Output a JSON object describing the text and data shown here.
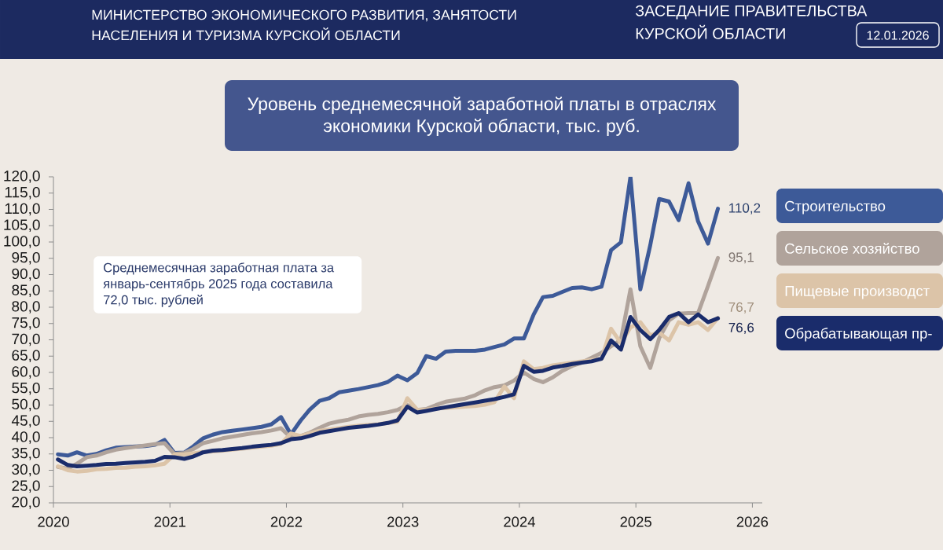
{
  "chart_data": {
    "type": "line",
    "title": "Уровень среднемесячной заработной платы в отраслях экономики Курской области, тыс. руб.",
    "annotations": [
      "МИНИСТЕРСТВО ЭКОНОМИЧЕСКОГО РАЗВИТИЯ, ЗАНЯТОСТИ НАСЕЛЕНИЯ И ТУРИЗМА КУРСКОЙ ОБЛАСТИ",
      "ЗАСЕДАНИЕ ПРАВИТЕЛЬСТВА КУРСКОЙ ОБЛАСТИ",
      "12.01.2026",
      "Среднемесячная заработная плата за январь-сентябрь 2025 года составила 72,0 тыс. рублей"
    ],
    "x": [
      "2020-01-15",
      "2020-02-15",
      "2020-03-15",
      "2020-04-15",
      "2020-05-15",
      "2020-06-15",
      "2020-07-15",
      "2020-08-15",
      "2020-09-15",
      "2020-10-15",
      "2020-11-15",
      "2020-12-15",
      "2021-01-15",
      "2021-02-15",
      "2021-03-15",
      "2021-04-15",
      "2021-05-15",
      "2021-06-15",
      "2021-07-15",
      "2021-08-15",
      "2021-09-15",
      "2021-10-15",
      "2021-11-15",
      "2021-12-15",
      "2022-01-15",
      "2022-02-15",
      "2022-03-15",
      "2022-04-15",
      "2022-05-15",
      "2022-06-15",
      "2022-07-15",
      "2022-08-15",
      "2022-09-15",
      "2022-10-15",
      "2022-11-15",
      "2022-12-15",
      "2023-01-15",
      "2023-02-15",
      "2023-03-15",
      "2023-04-15",
      "2023-05-15",
      "2023-06-15",
      "2023-07-15",
      "2023-08-15",
      "2023-09-15",
      "2023-10-15",
      "2023-11-15",
      "2023-12-15",
      "2024-01-15",
      "2024-02-15",
      "2024-03-15",
      "2024-04-15",
      "2024-05-15",
      "2024-06-15",
      "2024-07-15",
      "2024-08-15",
      "2024-09-15",
      "2024-10-15",
      "2024-11-15",
      "2024-12-15",
      "2025-01-15",
      "2025-02-15",
      "2025-03-15",
      "2025-04-15",
      "2025-05-15",
      "2025-06-15",
      "2025-07-15",
      "2025-08-15",
      "2025-09-15"
    ],
    "xlim": [
      "2020",
      "2026-02"
    ],
    "xticks": [
      "2020",
      "2021",
      "2022",
      "2023",
      "2024",
      "2025",
      "2026"
    ],
    "ylim": [
      20,
      120
    ],
    "yticks": [
      {
        "value": 20,
        "label": "20,0"
      },
      {
        "value": 25,
        "label": "25,0"
      },
      {
        "value": 30,
        "label": "30,0"
      },
      {
        "value": 35,
        "label": "35,0"
      },
      {
        "value": 40,
        "label": "40,0"
      },
      {
        "value": 45,
        "label": "45,0"
      },
      {
        "value": 50,
        "label": "50,0"
      },
      {
        "value": 55,
        "label": "55,0"
      },
      {
        "value": 60,
        "label": "60,0"
      },
      {
        "value": 65,
        "label": "65,0"
      },
      {
        "value": 70,
        "label": "70,0"
      },
      {
        "value": 75,
        "label": "75,0"
      },
      {
        "value": 80,
        "label": "80,0"
      },
      {
        "value": 85,
        "label": "85,0"
      },
      {
        "value": 90,
        "label": "90,0"
      },
      {
        "value": 95,
        "label": "95,0"
      },
      {
        "value": 100,
        "label": "100,0"
      },
      {
        "value": 105,
        "label": "105,0"
      },
      {
        "value": 110,
        "label": "110,0"
      },
      {
        "value": 115,
        "label": "115,0"
      },
      {
        "value": 120,
        "label": "120,0"
      }
    ],
    "legend": "right",
    "series": [
      {
        "name": "Строительство",
        "color": "#3d5a98",
        "values": [
          34.9,
          34.5,
          35.5,
          34.5,
          35.0,
          36.1,
          36.9,
          37.1,
          37.3,
          37.4,
          37.8,
          39.3,
          35.3,
          35.4,
          37.3,
          39.8,
          40.9,
          41.7,
          42.1,
          42.5,
          42.9,
          43.3,
          44.1,
          46.3,
          41.0,
          45.3,
          48.6,
          51.3,
          52.1,
          53.9,
          54.4,
          54.9,
          55.5,
          56.1,
          57.1,
          59.0,
          57.6,
          59.8,
          65.0,
          64.2,
          66.4,
          66.6,
          66.6,
          66.6,
          67.0,
          67.8,
          68.6,
          70.4,
          70.4,
          77.8,
          83.1,
          83.5,
          84.7,
          85.9,
          86.1,
          85.5,
          86.3,
          97.5,
          99.9,
          120.0,
          85.5,
          99.0,
          113.2,
          112.4,
          106.7,
          118.0,
          106.3,
          99.5,
          110.2
        ],
        "value_labels": [
          null,
          null,
          null,
          null,
          null,
          null,
          null,
          null,
          null,
          null,
          null,
          null,
          null,
          null,
          null,
          null,
          null,
          null,
          null,
          null,
          null,
          null,
          null,
          null,
          null,
          null,
          null,
          null,
          null,
          null,
          null,
          null,
          null,
          null,
          null,
          null,
          null,
          null,
          null,
          null,
          null,
          null,
          null,
          null,
          null,
          null,
          null,
          null,
          null,
          null,
          null,
          null,
          null,
          null,
          null,
          null,
          null,
          null,
          null,
          null,
          null,
          null,
          null,
          null,
          null,
          null,
          null,
          null,
          "110,2"
        ]
      },
      {
        "name": "Сельское хозяйство",
        "color": "#b0a39b",
        "values": [
          31.0,
          30.5,
          32.0,
          34.0,
          34.5,
          35.5,
          36.3,
          36.8,
          37.2,
          37.6,
          38.0,
          38.3,
          35.0,
          35.3,
          36.5,
          38.3,
          39.0,
          39.8,
          40.3,
          40.8,
          41.3,
          41.7,
          42.2,
          42.9,
          40.0,
          40.5,
          41.5,
          43.0,
          44.3,
          45.0,
          45.5,
          46.5,
          47.0,
          47.3,
          47.8,
          48.5,
          50.0,
          48.5,
          48.8,
          50.0,
          51.0,
          51.5,
          52.0,
          53.0,
          54.5,
          55.5,
          56.0,
          57.5,
          60.0,
          58.0,
          57.0,
          58.5,
          60.5,
          62.0,
          63.0,
          64.5,
          66.0,
          68.0,
          70.0,
          85.5,
          68.0,
          61.4,
          70.5,
          76.0,
          78.0,
          78.2,
          78.2,
          86.5,
          95.1
        ],
        "value_labels": [
          null,
          null,
          null,
          null,
          null,
          null,
          null,
          null,
          null,
          null,
          null,
          null,
          null,
          null,
          null,
          null,
          null,
          null,
          null,
          null,
          null,
          null,
          null,
          null,
          null,
          null,
          null,
          null,
          null,
          null,
          null,
          null,
          null,
          null,
          null,
          null,
          null,
          null,
          null,
          null,
          null,
          null,
          null,
          null,
          null,
          null,
          null,
          null,
          null,
          null,
          null,
          null,
          null,
          null,
          null,
          null,
          null,
          null,
          null,
          null,
          null,
          null,
          null,
          null,
          null,
          null,
          null,
          null,
          "95,1"
        ]
      },
      {
        "name": "Пищевые производст",
        "color": "#dcc4a8",
        "values": [
          31.2,
          30.0,
          29.6,
          29.8,
          30.3,
          30.4,
          30.7,
          30.8,
          31.1,
          31.2,
          31.5,
          32.0,
          34.8,
          34.9,
          35.2,
          35.6,
          35.8,
          36.0,
          36.3,
          36.6,
          36.9,
          37.2,
          37.5,
          38.1,
          41.3,
          40.5,
          41.3,
          42.1,
          42.5,
          42.9,
          43.3,
          43.7,
          43.9,
          44.1,
          44.5,
          44.9,
          52.1,
          48.5,
          48.6,
          49.0,
          49.1,
          49.3,
          49.5,
          49.7,
          50.1,
          50.9,
          55.7,
          52.1,
          63.4,
          61.0,
          61.4,
          62.2,
          62.6,
          63.0,
          63.4,
          63.8,
          64.2,
          73.4,
          69.0,
          73.8,
          75.4,
          71.4,
          72.2,
          69.8,
          75.4,
          74.6,
          75.4,
          73.0,
          76.7
        ],
        "value_labels": [
          null,
          null,
          null,
          null,
          null,
          null,
          null,
          null,
          null,
          null,
          null,
          null,
          null,
          null,
          null,
          null,
          null,
          null,
          null,
          null,
          null,
          null,
          null,
          null,
          null,
          null,
          null,
          null,
          null,
          null,
          null,
          null,
          null,
          null,
          null,
          null,
          null,
          null,
          null,
          null,
          null,
          null,
          null,
          null,
          null,
          null,
          null,
          null,
          null,
          null,
          null,
          null,
          null,
          null,
          null,
          null,
          null,
          null,
          null,
          null,
          null,
          null,
          null,
          null,
          null,
          null,
          null,
          null,
          "76,7"
        ]
      },
      {
        "name": "Обрабатывающая пр-",
        "color": "#1a2c6b",
        "values": [
          33.3,
          31.6,
          31.2,
          31.4,
          31.6,
          31.9,
          32.0,
          32.2,
          32.4,
          32.6,
          32.9,
          34.1,
          34.0,
          33.5,
          34.2,
          35.5,
          36.0,
          36.2,
          36.5,
          36.8,
          37.2,
          37.5,
          37.8,
          38.3,
          39.5,
          39.8,
          40.5,
          41.5,
          42.0,
          42.5,
          43.0,
          43.3,
          43.6,
          44.0,
          44.5,
          45.3,
          49.5,
          47.7,
          48.2,
          48.8,
          49.3,
          49.8,
          50.3,
          50.8,
          51.3,
          51.8,
          52.5,
          53.3,
          62.0,
          60.2,
          60.5,
          61.5,
          62.0,
          62.6,
          63.0,
          63.4,
          64.2,
          69.8,
          67.0,
          77.0,
          73.0,
          70.2,
          73.0,
          77.0,
          78.2,
          75.4,
          77.8,
          75.4,
          76.6
        ],
        "value_labels": [
          null,
          null,
          null,
          null,
          null,
          null,
          null,
          null,
          null,
          null,
          null,
          null,
          null,
          null,
          null,
          null,
          null,
          null,
          null,
          null,
          null,
          null,
          null,
          null,
          null,
          null,
          null,
          null,
          null,
          null,
          null,
          null,
          null,
          null,
          null,
          null,
          null,
          null,
          null,
          null,
          null,
          null,
          null,
          null,
          null,
          null,
          null,
          null,
          null,
          null,
          null,
          null,
          null,
          null,
          null,
          null,
          null,
          null,
          null,
          null,
          null,
          null,
          null,
          null,
          null,
          null,
          null,
          null,
          "76,6"
        ]
      }
    ]
  }
}
